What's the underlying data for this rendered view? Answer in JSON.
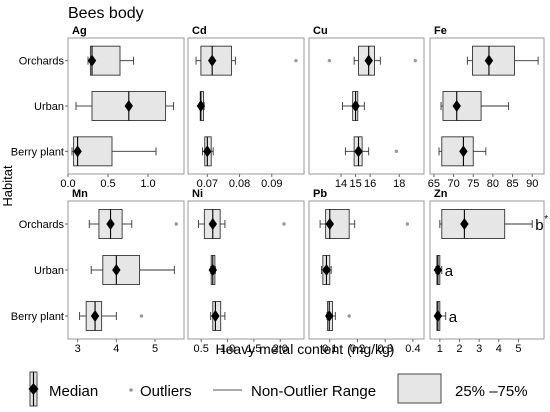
{
  "chart_data": {
    "type": "boxplot",
    "title": "Bees body",
    "xlabel": "Heavy metal content (mg/kg)",
    "ylabel": "Habitat",
    "categories": [
      "Orchards",
      "Urban",
      "Berry plant"
    ],
    "panels": [
      {
        "name": "Ag",
        "xlim": [
          0,
          1.45
        ],
        "ticks": [
          0,
          0.5,
          1
        ],
        "tick_labels": [
          "0.0",
          "0.5",
          "1.0"
        ],
        "boxes": [
          {
            "category": "Orchards",
            "whisker_low": 0.25,
            "q1": 0.28,
            "median": 0.3,
            "q3": 0.65,
            "whisker_high": 0.82,
            "outliers": []
          },
          {
            "category": "Urban",
            "whisker_low": 0.1,
            "q1": 0.3,
            "median": 0.76,
            "q3": 1.22,
            "whisker_high": 1.32,
            "outliers": []
          },
          {
            "category": "Berry plant",
            "whisker_low": 0.05,
            "q1": 0.07,
            "median": 0.12,
            "q3": 0.55,
            "whisker_high": 1.1,
            "outliers": []
          }
        ]
      },
      {
        "name": "Cd",
        "xlim": [
          0.064,
          0.1
        ],
        "ticks": [
          0.07,
          0.08,
          0.09
        ],
        "tick_labels": [
          "0.07",
          "0.08",
          "0.09"
        ],
        "boxes": [
          {
            "category": "Orchards",
            "whisker_low": 0.0665,
            "q1": 0.068,
            "median": 0.0715,
            "q3": 0.0775,
            "whisker_high": 0.0787,
            "outliers": [
              0.0975
            ]
          },
          {
            "category": "Urban",
            "whisker_low": 0.0676,
            "q1": 0.0678,
            "median": 0.068,
            "q3": 0.0688,
            "whisker_high": 0.069,
            "outliers": []
          },
          {
            "category": "Berry plant",
            "whisker_low": 0.0685,
            "q1": 0.0692,
            "median": 0.07,
            "q3": 0.0712,
            "whisker_high": 0.0718,
            "outliers": []
          }
        ]
      },
      {
        "name": "Cu",
        "xlim": [
          11.8,
          19.7
        ],
        "ticks": [
          14,
          15,
          16,
          18
        ],
        "tick_labels": [
          "14",
          "15",
          "16",
          "18"
        ],
        "boxes": [
          {
            "category": "Orchards",
            "whisker_low": 14.9,
            "q1": 15.2,
            "median": 15.9,
            "q3": 16.3,
            "whisker_high": 16.7,
            "outliers": [
              13.2,
              19.1
            ]
          },
          {
            "category": "Urban",
            "whisker_low": 14.1,
            "q1": 14.8,
            "median": 15.0,
            "q3": 15.15,
            "whisker_high": 15.6,
            "outliers": []
          },
          {
            "category": "Berry plant",
            "whisker_low": 14.3,
            "q1": 14.9,
            "median": 15.2,
            "q3": 15.45,
            "whisker_high": 15.9,
            "outliers": [
              17.8
            ]
          }
        ]
      },
      {
        "name": "Fe",
        "xlim": [
          64,
          93
        ],
        "ticks": [
          65,
          70,
          75,
          80,
          85,
          90
        ],
        "tick_labels": [
          "65",
          "70",
          "75",
          "80",
          "85",
          "90"
        ],
        "boxes": [
          {
            "category": "Orchards",
            "whisker_low": 73.5,
            "q1": 74.8,
            "median": 79,
            "q3": 85.5,
            "whisker_high": 91.5,
            "outliers": []
          },
          {
            "category": "Urban",
            "whisker_low": 66.8,
            "q1": 67.3,
            "median": 70.8,
            "q3": 77,
            "whisker_high": 84,
            "outliers": []
          },
          {
            "category": "Berry plant",
            "whisker_low": 66.3,
            "q1": 67,
            "median": 72.5,
            "q3": 75,
            "whisker_high": 78.2,
            "outliers": []
          }
        ]
      },
      {
        "name": "Mn",
        "xlim": [
          2.75,
          5.75
        ],
        "ticks": [
          3,
          4,
          5
        ],
        "tick_labels": [
          "3",
          "4",
          "5"
        ],
        "boxes": [
          {
            "category": "Orchards",
            "whisker_low": 3.3,
            "q1": 3.55,
            "median": 3.85,
            "q3": 4.15,
            "whisker_high": 4.4,
            "outliers": [
              5.55
            ]
          },
          {
            "category": "Urban",
            "whisker_low": 3.35,
            "q1": 3.65,
            "median": 4.0,
            "q3": 4.6,
            "whisker_high": 5.5,
            "outliers": []
          },
          {
            "category": "Berry plant",
            "whisker_low": 3.05,
            "q1": 3.22,
            "median": 3.45,
            "q3": 3.62,
            "whisker_high": 4.0,
            "outliers": [
              4.65
            ]
          }
        ]
      },
      {
        "name": "Ni",
        "xlim": [
          0.25,
          2.45
        ],
        "ticks": [
          0.5,
          1,
          1.5,
          2
        ],
        "tick_labels": [
          "0.5",
          "1.0",
          "1.5",
          "2.0"
        ],
        "boxes": [
          {
            "category": "Orchards",
            "whisker_low": 0.45,
            "q1": 0.56,
            "median": 0.72,
            "q3": 0.86,
            "whisker_high": 0.95,
            "outliers": [
              2.07
            ]
          },
          {
            "category": "Urban",
            "whisker_low": 0.68,
            "q1": 0.69,
            "median": 0.72,
            "q3": 0.76,
            "whisker_high": 0.77,
            "outliers": []
          },
          {
            "category": "Berry plant",
            "whisker_low": 0.68,
            "q1": 0.72,
            "median": 0.77,
            "q3": 0.87,
            "whisker_high": 0.95,
            "outliers": []
          }
        ]
      },
      {
        "name": "Pb",
        "xlim": [
          0.025,
          0.44
        ],
        "ticks": [
          0.1,
          0.2,
          0.3,
          0.4
        ],
        "tick_labels": [
          "0.1",
          "0.2",
          "0.3",
          "0.4"
        ],
        "boxes": [
          {
            "category": "Orchards",
            "whisker_low": 0.065,
            "q1": 0.085,
            "median": 0.1,
            "q3": 0.17,
            "whisker_high": 0.19,
            "outliers": [
              0.38
            ]
          },
          {
            "category": "Urban",
            "whisker_low": 0.07,
            "q1": 0.075,
            "median": 0.088,
            "q3": 0.1,
            "whisker_high": 0.105,
            "outliers": []
          },
          {
            "category": "Berry plant",
            "whisker_low": 0.09,
            "q1": 0.092,
            "median": 0.098,
            "q3": 0.11,
            "whisker_high": 0.12,
            "outliers": [
              0.17
            ]
          }
        ]
      },
      {
        "name": "Zn",
        "xlim": [
          0.5,
          6.3
        ],
        "ticks": [
          1,
          2,
          3,
          4,
          5
        ],
        "tick_labels": [
          "1",
          "2",
          "3",
          "4",
          "5"
        ],
        "boxes": [
          {
            "category": "Orchards",
            "whisker_low": 1.0,
            "q1": 1.1,
            "median": 2.25,
            "q3": 4.3,
            "whisker_high": 5.7,
            "outliers": []
          },
          {
            "category": "Urban",
            "whisker_low": 0.8,
            "q1": 0.85,
            "median": 0.9,
            "q3": 1.0,
            "whisker_high": 1.1,
            "outliers": []
          },
          {
            "category": "Berry plant",
            "whisker_low": 0.82,
            "q1": 0.85,
            "median": 0.9,
            "q3": 1.0,
            "whisker_high": 1.3,
            "outliers": []
          }
        ],
        "annotations": [
          {
            "category": "Orchards",
            "label": "b",
            "star": "*"
          },
          {
            "category": "Urban",
            "label": "a",
            "star": ""
          },
          {
            "category": "Berry plant",
            "label": "a",
            "star": ""
          }
        ]
      }
    ],
    "legend": {
      "placement": "bottom",
      "entries": [
        {
          "key": "median",
          "label": "Median"
        },
        {
          "key": "outliers",
          "label": "Outliers"
        },
        {
          "key": "range",
          "label": "Non-Outlier Range"
        },
        {
          "key": "iqr",
          "label": "25% –75%"
        }
      ]
    },
    "colors": {
      "box_fill": "#e6e6e6",
      "box_stroke": "#333333",
      "outlier": "#999999",
      "frame": "#9a9a9a",
      "median": "#000000"
    }
  }
}
